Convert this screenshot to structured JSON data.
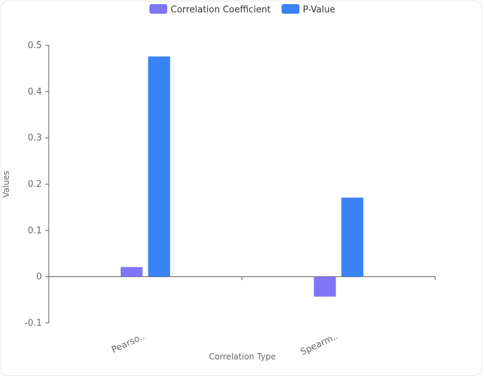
{
  "chart_data": {
    "type": "bar",
    "categories": [
      "Pearso..",
      "Spearm.."
    ],
    "series": [
      {
        "name": "Correlation Coefficient",
        "color": "#8074f7",
        "values": [
          0.021,
          -0.043
        ]
      },
      {
        "name": "P-Value",
        "color": "#3a82f5",
        "values": [
          0.476,
          0.171
        ]
      }
    ],
    "xlabel": "Correlation Type",
    "ylabel": "Values",
    "ylim": [
      -0.1,
      0.5
    ],
    "yticks": [
      -0.1,
      0,
      0.1,
      0.2,
      0.3,
      0.4,
      0.5
    ],
    "ytick_labels": [
      "-0.1",
      "0",
      "0.1",
      "0.2",
      "0.3",
      "0.4",
      "0.5"
    ],
    "grid": false,
    "legend_position": "top-center"
  }
}
